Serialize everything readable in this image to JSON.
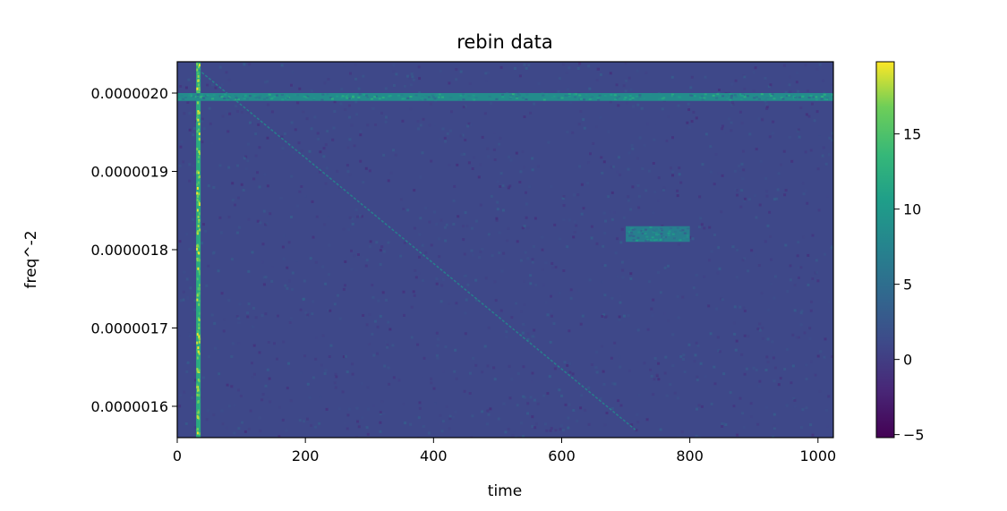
{
  "chart_data": {
    "type": "heatmap",
    "title": "rebin data",
    "xlabel": "time",
    "ylabel": "freq^-2",
    "xlim": [
      0,
      1024
    ],
    "ylim": [
      1.56e-06,
      2.04e-06
    ],
    "x_ticks": [
      {
        "value": 0,
        "label": "0"
      },
      {
        "value": 200,
        "label": "200"
      },
      {
        "value": 400,
        "label": "400"
      },
      {
        "value": 600,
        "label": "600"
      },
      {
        "value": 800,
        "label": "800"
      },
      {
        "value": 1000,
        "label": "1000"
      }
    ],
    "y_ticks": [
      {
        "value": 1.6e-06,
        "label": "0.0000016"
      },
      {
        "value": 1.7e-06,
        "label": "0.0000017"
      },
      {
        "value": 1.8e-06,
        "label": "0.0000018"
      },
      {
        "value": 1.9e-06,
        "label": "0.0000019"
      },
      {
        "value": 2e-06,
        "label": "0.0000020"
      }
    ],
    "colormap": "viridis",
    "colorbar": {
      "range": [
        -5.2,
        19.8
      ],
      "ticks": [
        {
          "value": -5,
          "label": "−5"
        },
        {
          "value": 0,
          "label": "0"
        },
        {
          "value": 5,
          "label": "5"
        },
        {
          "value": 10,
          "label": "10"
        },
        {
          "value": 15,
          "label": "15"
        }
      ]
    },
    "background_level": 1.0,
    "features": [
      {
        "kind": "vertical-line",
        "x": 33,
        "level": 16
      },
      {
        "kind": "horizontal-band",
        "y": [
          1.99e-06,
          2e-06
        ],
        "level": 8.5
      },
      {
        "kind": "diagonal-line",
        "from": {
          "x": 33,
          "y": 2.03e-06
        },
        "to": {
          "x": 715,
          "y": 1.57e-06
        },
        "level": 8
      },
      {
        "kind": "rectangle",
        "x": [
          700,
          800
        ],
        "y": [
          1.81e-06,
          1.83e-06
        ],
        "level": 7
      }
    ]
  }
}
